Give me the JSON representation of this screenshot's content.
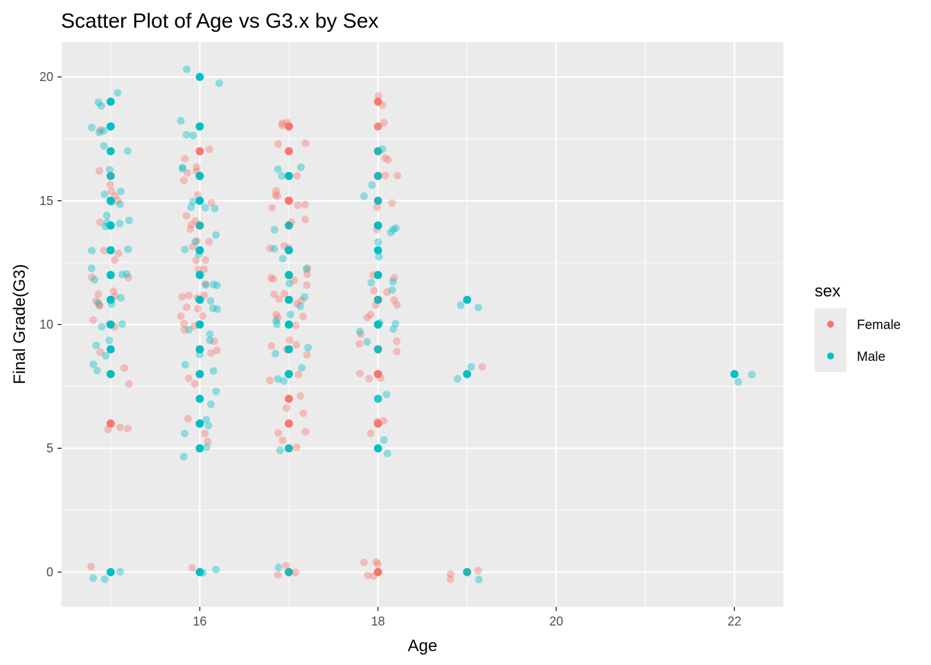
{
  "chart_data": {
    "type": "scatter",
    "title": "Scatter Plot of Age vs G3.x by Sex",
    "xlabel": "Age",
    "ylabel": "Final Grade(G3)",
    "xlim": [
      14.45,
      22.55
    ],
    "ylim": [
      -1.4,
      21.4
    ],
    "x_ticks": [
      16,
      18,
      20,
      22
    ],
    "y_ticks": [
      0,
      5,
      10,
      15,
      20
    ],
    "grid": true,
    "jitter": "points are drawn twice: solid at exact (age, grade) and faint with small random jitter",
    "legend": {
      "title": "sex",
      "placement": "right",
      "entries": [
        {
          "label": "Female",
          "color": "#F8766D"
        },
        {
          "label": "Male",
          "color": "#00BFC4"
        }
      ]
    },
    "series": [
      {
        "name": "Female",
        "color": "#F8766D",
        "points": [
          [
            15,
            0
          ],
          [
            15,
            6
          ],
          [
            15,
            6
          ],
          [
            15,
            6
          ],
          [
            15,
            8
          ],
          [
            15,
            8
          ],
          [
            15,
            9
          ],
          [
            15,
            10
          ],
          [
            15,
            10
          ],
          [
            15,
            10
          ],
          [
            15,
            11
          ],
          [
            15,
            11
          ],
          [
            15,
            11
          ],
          [
            15,
            11
          ],
          [
            15,
            11
          ],
          [
            15,
            11
          ],
          [
            15,
            12
          ],
          [
            15,
            12
          ],
          [
            15,
            13
          ],
          [
            15,
            13
          ],
          [
            15,
            13
          ],
          [
            15,
            14
          ],
          [
            15,
            15
          ],
          [
            15,
            15
          ],
          [
            15,
            15
          ],
          [
            15,
            16
          ],
          [
            15,
            16
          ],
          [
            15,
            18
          ],
          [
            16,
            0
          ],
          [
            16,
            5
          ],
          [
            16,
            6
          ],
          [
            16,
            6
          ],
          [
            16,
            8
          ],
          [
            16,
            8
          ],
          [
            16,
            9
          ],
          [
            16,
            9
          ],
          [
            16,
            9
          ],
          [
            16,
            10
          ],
          [
            16,
            10
          ],
          [
            16,
            10
          ],
          [
            16,
            10
          ],
          [
            16,
            10
          ],
          [
            16,
            11
          ],
          [
            16,
            11
          ],
          [
            16,
            11
          ],
          [
            16,
            11
          ],
          [
            16,
            11
          ],
          [
            16,
            11
          ],
          [
            16,
            12
          ],
          [
            16,
            12
          ],
          [
            16,
            12
          ],
          [
            16,
            13
          ],
          [
            16,
            13
          ],
          [
            16,
            13
          ],
          [
            16,
            13
          ],
          [
            16,
            13
          ],
          [
            16,
            14
          ],
          [
            16,
            14
          ],
          [
            16,
            14
          ],
          [
            16,
            14
          ],
          [
            16,
            15
          ],
          [
            16,
            15
          ],
          [
            16,
            16
          ],
          [
            16,
            16
          ],
          [
            16,
            16
          ],
          [
            16,
            16
          ],
          [
            16,
            17
          ],
          [
            16,
            17
          ],
          [
            17,
            0
          ],
          [
            17,
            0
          ],
          [
            17,
            0
          ],
          [
            17,
            5
          ],
          [
            17,
            5
          ],
          [
            17,
            6
          ],
          [
            17,
            6
          ],
          [
            17,
            6
          ],
          [
            17,
            7
          ],
          [
            17,
            7
          ],
          [
            17,
            8
          ],
          [
            17,
            8
          ],
          [
            17,
            9
          ],
          [
            17,
            9
          ],
          [
            17,
            9
          ],
          [
            17,
            9
          ],
          [
            17,
            9
          ],
          [
            17,
            10
          ],
          [
            17,
            10
          ],
          [
            17,
            10
          ],
          [
            17,
            10
          ],
          [
            17,
            11
          ],
          [
            17,
            11
          ],
          [
            17,
            11
          ],
          [
            17,
            11
          ],
          [
            17,
            11
          ],
          [
            17,
            12
          ],
          [
            17,
            12
          ],
          [
            17,
            12
          ],
          [
            17,
            12
          ],
          [
            17,
            12
          ],
          [
            17,
            12
          ],
          [
            17,
            13
          ],
          [
            17,
            13
          ],
          [
            17,
            13
          ],
          [
            17,
            14
          ],
          [
            17,
            14
          ],
          [
            17,
            15
          ],
          [
            17,
            15
          ],
          [
            17,
            15
          ],
          [
            17,
            15
          ],
          [
            17,
            15
          ],
          [
            17,
            15
          ],
          [
            17,
            16
          ],
          [
            17,
            17
          ],
          [
            17,
            17
          ],
          [
            17,
            18
          ],
          [
            17,
            18
          ],
          [
            17,
            18
          ],
          [
            18,
            0
          ],
          [
            18,
            0
          ],
          [
            18,
            0
          ],
          [
            18,
            0
          ],
          [
            18,
            0
          ],
          [
            18,
            6
          ],
          [
            18,
            6
          ],
          [
            18,
            6
          ],
          [
            18,
            8
          ],
          [
            18,
            8
          ],
          [
            18,
            8
          ],
          [
            18,
            9
          ],
          [
            18,
            9
          ],
          [
            18,
            9
          ],
          [
            18,
            10
          ],
          [
            18,
            10
          ],
          [
            18,
            10
          ],
          [
            18,
            11
          ],
          [
            18,
            11
          ],
          [
            18,
            11
          ],
          [
            18,
            11
          ],
          [
            18,
            11
          ],
          [
            18,
            12
          ],
          [
            18,
            12
          ],
          [
            18,
            14
          ],
          [
            18,
            15
          ],
          [
            18,
            15
          ],
          [
            18,
            16
          ],
          [
            18,
            16
          ],
          [
            18,
            17
          ],
          [
            18,
            17
          ],
          [
            18,
            18
          ],
          [
            18,
            19
          ],
          [
            18,
            19
          ],
          [
            19,
            0
          ],
          [
            19,
            0
          ],
          [
            19,
            0
          ],
          [
            19,
            8
          ]
        ]
      },
      {
        "name": "Male",
        "color": "#00BFC4",
        "points": [
          [
            15,
            0
          ],
          [
            15,
            0
          ],
          [
            15,
            0
          ],
          [
            15,
            8
          ],
          [
            15,
            8
          ],
          [
            15,
            9
          ],
          [
            15,
            9
          ],
          [
            15,
            9
          ],
          [
            15,
            10
          ],
          [
            15,
            10
          ],
          [
            15,
            11
          ],
          [
            15,
            11
          ],
          [
            15,
            11
          ],
          [
            15,
            12
          ],
          [
            15,
            12
          ],
          [
            15,
            12
          ],
          [
            15,
            12
          ],
          [
            15,
            13
          ],
          [
            15,
            13
          ],
          [
            15,
            14
          ],
          [
            15,
            14
          ],
          [
            15,
            14
          ],
          [
            15,
            14
          ],
          [
            15,
            14
          ],
          [
            15,
            15
          ],
          [
            15,
            15
          ],
          [
            15,
            15
          ],
          [
            15,
            15
          ],
          [
            15,
            16
          ],
          [
            15,
            17
          ],
          [
            15,
            17
          ],
          [
            15,
            18
          ],
          [
            15,
            18
          ],
          [
            15,
            18
          ],
          [
            15,
            19
          ],
          [
            15,
            19
          ],
          [
            15,
            19
          ],
          [
            16,
            0
          ],
          [
            16,
            0
          ],
          [
            16,
            5
          ],
          [
            16,
            5
          ],
          [
            16,
            6
          ],
          [
            16,
            6
          ],
          [
            16,
            6
          ],
          [
            16,
            7
          ],
          [
            16,
            7
          ],
          [
            16,
            8
          ],
          [
            16,
            8
          ],
          [
            16,
            9
          ],
          [
            16,
            9
          ],
          [
            16,
            10
          ],
          [
            16,
            10
          ],
          [
            16,
            11
          ],
          [
            16,
            11
          ],
          [
            16,
            11
          ],
          [
            16,
            12
          ],
          [
            16,
            12
          ],
          [
            16,
            12
          ],
          [
            16,
            13
          ],
          [
            16,
            13
          ],
          [
            16,
            13
          ],
          [
            16,
            14
          ],
          [
            16,
            15
          ],
          [
            16,
            15
          ],
          [
            16,
            15
          ],
          [
            16,
            15
          ],
          [
            16,
            16
          ],
          [
            16,
            16
          ],
          [
            16,
            18
          ],
          [
            16,
            18
          ],
          [
            16,
            18
          ],
          [
            16,
            20
          ],
          [
            16,
            20
          ],
          [
            17,
            0
          ],
          [
            17,
            5
          ],
          [
            17,
            8
          ],
          [
            17,
            8
          ],
          [
            17,
            8
          ],
          [
            17,
            9
          ],
          [
            17,
            9
          ],
          [
            17,
            10
          ],
          [
            17,
            10
          ],
          [
            17,
            10
          ],
          [
            17,
            11
          ],
          [
            17,
            11
          ],
          [
            17,
            12
          ],
          [
            17,
            12
          ],
          [
            17,
            13
          ],
          [
            17,
            13
          ],
          [
            17,
            14
          ],
          [
            17,
            16
          ],
          [
            17,
            16
          ],
          [
            17,
            16
          ],
          [
            18,
            5
          ],
          [
            18,
            5
          ],
          [
            18,
            7
          ],
          [
            18,
            9
          ],
          [
            18,
            10
          ],
          [
            18,
            10
          ],
          [
            18,
            10
          ],
          [
            18,
            10
          ],
          [
            18,
            11
          ],
          [
            18,
            12
          ],
          [
            18,
            12
          ],
          [
            18,
            13
          ],
          [
            18,
            13
          ],
          [
            18,
            14
          ],
          [
            18,
            14
          ],
          [
            18,
            14
          ],
          [
            18,
            15
          ],
          [
            18,
            16
          ],
          [
            18,
            17
          ],
          [
            19,
            0
          ],
          [
            19,
            8
          ],
          [
            19,
            8
          ],
          [
            19,
            11
          ],
          [
            19,
            11
          ],
          [
            22,
            8
          ],
          [
            22,
            8
          ]
        ]
      }
    ]
  }
}
